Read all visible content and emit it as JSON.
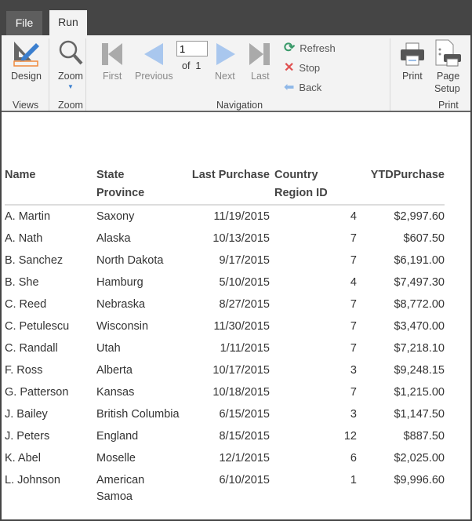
{
  "tabs": [
    {
      "label": "File"
    },
    {
      "label": "Run"
    }
  ],
  "ribbon": {
    "views": {
      "design": "Design",
      "group": "Views"
    },
    "zoom": {
      "zoom": "Zoom",
      "group": "Zoom"
    },
    "navigation": {
      "first": "First",
      "previous": "Previous",
      "page": "1",
      "of": "of",
      "total": "1",
      "next": "Next",
      "last": "Last",
      "refresh": "Refresh",
      "stop": "Stop",
      "back": "Back",
      "group": "Navigation"
    },
    "print": {
      "print": "Print",
      "page_setup_1": "Page",
      "page_setup_2": "Setup",
      "group": "Print"
    }
  },
  "table": {
    "headers": [
      [
        "Name",
        ""
      ],
      [
        "State",
        "Province"
      ],
      [
        "Last Purchase",
        ""
      ],
      [
        "Country",
        "Region ID"
      ],
      [
        "YTDPurchase",
        ""
      ]
    ],
    "rows": [
      [
        "A. Martin",
        "Saxony",
        "11/19/2015",
        "4",
        "$2,997.60"
      ],
      [
        "A. Nath",
        "Alaska",
        "10/13/2015",
        "7",
        "$607.50"
      ],
      [
        "B. Sanchez",
        "North Dakota",
        "9/17/2015",
        "7",
        "$6,191.00"
      ],
      [
        "B. She",
        "Hamburg",
        "5/10/2015",
        "4",
        "$7,497.30"
      ],
      [
        "C. Reed",
        "Nebraska",
        "8/27/2015",
        "7",
        "$8,772.00"
      ],
      [
        "C. Petulescu",
        "Wisconsin",
        "11/30/2015",
        "7",
        "$3,470.00"
      ],
      [
        "C. Randall",
        "Utah",
        "1/11/2015",
        "7",
        "$7,218.10"
      ],
      [
        "F. Ross",
        "Alberta",
        "10/17/2015",
        "3",
        "$9,248.15"
      ],
      [
        "G. Patterson",
        "Kansas",
        "10/18/2015",
        "7",
        "$1,215.00"
      ],
      [
        "J. Bailey",
        "British Columbia",
        "6/15/2015",
        "3",
        "$1,147.50"
      ],
      [
        "J. Peters",
        "England",
        "8/15/2015",
        "12",
        "$887.50"
      ],
      [
        "K. Abel",
        "Moselle",
        "12/1/2015",
        "6",
        "$2,025.00"
      ],
      [
        "L. Johnson",
        "American Samoa",
        "6/10/2015",
        "1",
        "$9,996.60"
      ]
    ]
  }
}
